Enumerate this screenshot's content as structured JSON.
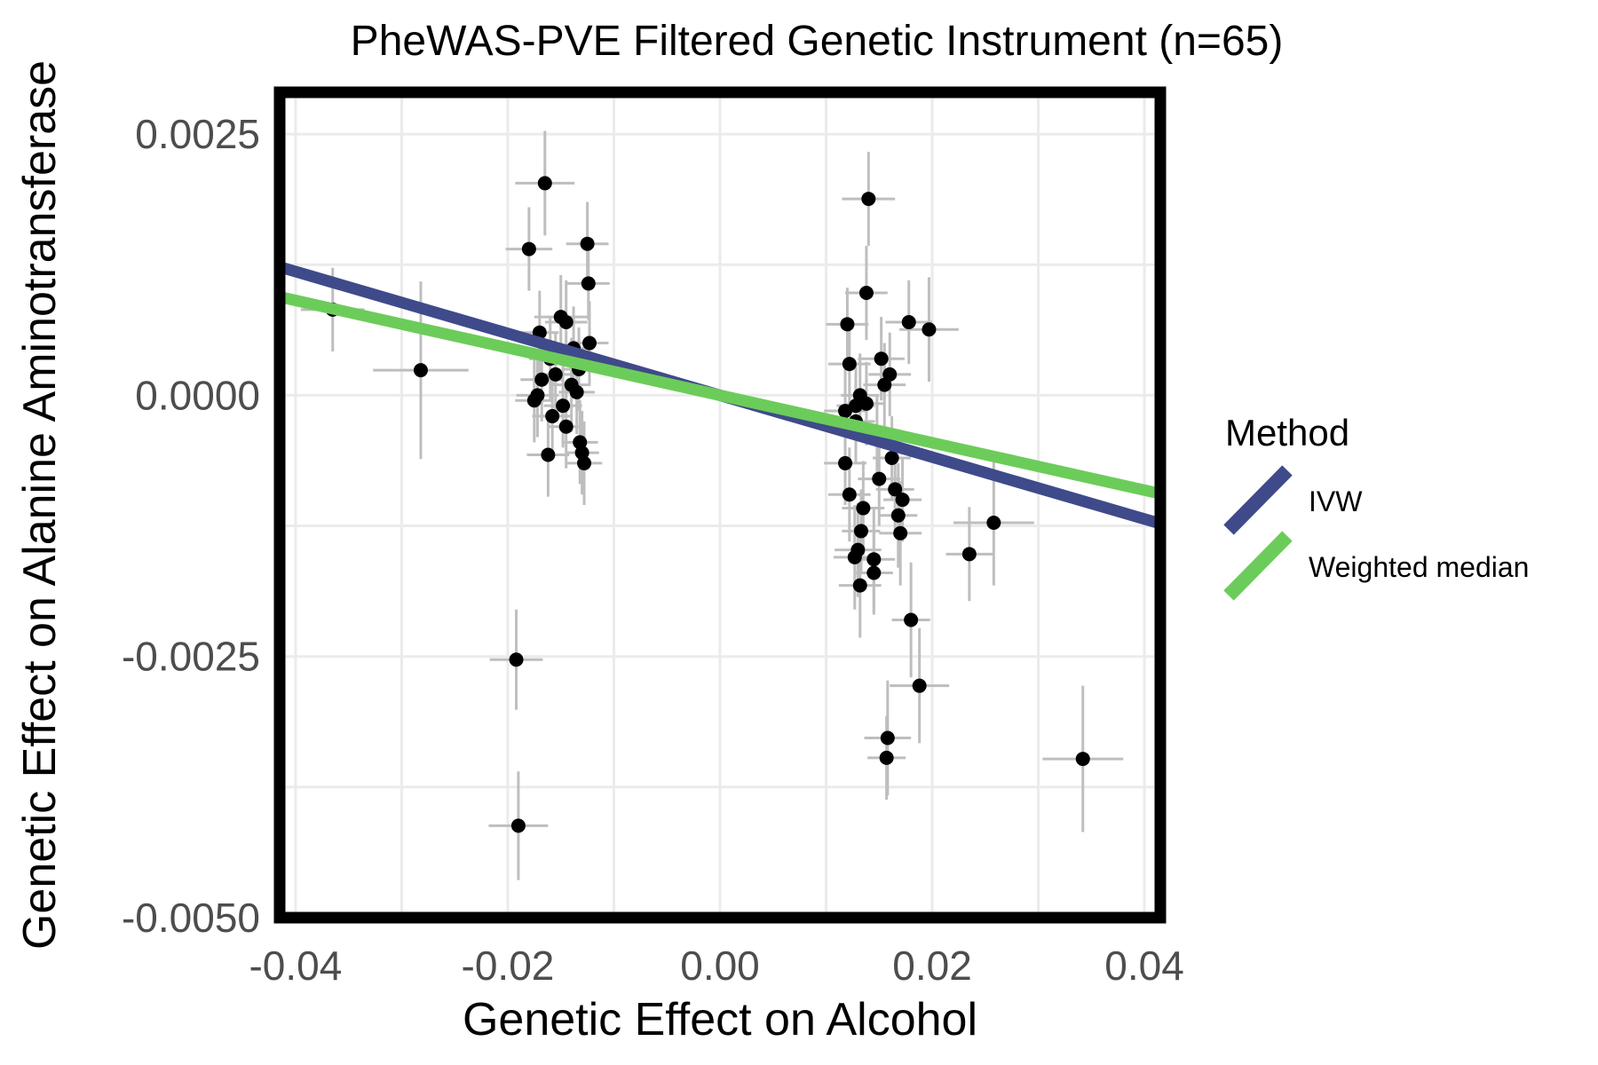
{
  "chart_data": {
    "type": "scatter",
    "title": "PheWAS-PVE Filtered Genetic Instrument (n=65)",
    "xlabel": "Genetic Effect on Alcohol",
    "ylabel": "Genetic Effect on Alanine Aminotransferase",
    "xlim": [
      -0.0415,
      0.0415
    ],
    "ylim": [
      -0.005,
      0.0029
    ],
    "xticks": [
      -0.04,
      -0.02,
      0.0,
      0.02,
      0.04
    ],
    "xtick_labels": [
      "-0.04",
      "-0.02",
      "0.00",
      "0.02",
      "0.04"
    ],
    "yticks": [
      0.0025,
      0.0,
      -0.0025,
      -0.005
    ],
    "ytick_labels": [
      "0.0025",
      "0.0000",
      "-0.0025",
      "-0.0050"
    ],
    "grid": true,
    "legend": {
      "title": "Method",
      "position": "right",
      "entries": [
        {
          "label": "IVW",
          "color": "#3f4a8a"
        },
        {
          "label": "Weighted median",
          "color": "#6ccc5a"
        }
      ]
    },
    "lines": [
      {
        "name": "IVW",
        "slope": -0.0296,
        "intercept": 0,
        "color": "#3f4a8a"
      },
      {
        "name": "Weighted median",
        "slope": -0.0227,
        "intercept": 0,
        "color": "#6ccc5a"
      }
    ],
    "point_color": "#000000",
    "errorbar_color": "#bebebe",
    "points": [
      {
        "x": -0.0365,
        "y": 0.00082,
        "ex": 0.003,
        "ey": 0.0004
      },
      {
        "x": -0.0282,
        "y": 0.00024,
        "ex": 0.0045,
        "ey": 0.00085
      },
      {
        "x": -0.0165,
        "y": 0.00203,
        "ex": 0.0028,
        "ey": 0.0005
      },
      {
        "x": -0.018,
        "y": 0.0014,
        "ex": 0.0022,
        "ey": 0.0004
      },
      {
        "x": -0.0125,
        "y": 0.00145,
        "ex": 0.002,
        "ey": 0.0004
      },
      {
        "x": -0.0124,
        "y": 0.00107,
        "ex": 0.002,
        "ey": 0.00035
      },
      {
        "x": -0.015,
        "y": 0.00075,
        "ex": 0.0025,
        "ey": 0.0004
      },
      {
        "x": -0.0145,
        "y": 0.0007,
        "ex": 0.002,
        "ey": 0.0004
      },
      {
        "x": -0.0123,
        "y": 0.0005,
        "ex": 0.0018,
        "ey": 0.0004
      },
      {
        "x": -0.016,
        "y": 0.00035,
        "ex": 0.002,
        "ey": 0.0004
      },
      {
        "x": -0.0168,
        "y": 0.00015,
        "ex": 0.002,
        "ey": 0.0004
      },
      {
        "x": -0.0172,
        "y": 0.0,
        "ex": 0.002,
        "ey": 0.0004
      },
      {
        "x": -0.0175,
        "y": -5e-05,
        "ex": 0.0018,
        "ey": 0.0004
      },
      {
        "x": -0.014,
        "y": 0.0001,
        "ex": 0.0018,
        "ey": 0.00045
      },
      {
        "x": -0.0135,
        "y": 3e-05,
        "ex": 0.0017,
        "ey": 0.0004
      },
      {
        "x": -0.0158,
        "y": -0.0002,
        "ex": 0.0019,
        "ey": 0.0004
      },
      {
        "x": -0.0145,
        "y": -0.0003,
        "ex": 0.0018,
        "ey": 0.0004
      },
      {
        "x": -0.0132,
        "y": -0.00045,
        "ex": 0.0017,
        "ey": 0.0004
      },
      {
        "x": -0.0162,
        "y": -0.00057,
        "ex": 0.002,
        "ey": 0.0004
      },
      {
        "x": -0.0128,
        "y": -0.00065,
        "ex": 0.0017,
        "ey": 0.0004
      },
      {
        "x": -0.013,
        "y": -0.00055,
        "ex": 0.0016,
        "ey": 0.0004
      },
      {
        "x": -0.0155,
        "y": 0.0002,
        "ex": 0.0018,
        "ey": 0.0004
      },
      {
        "x": -0.0138,
        "y": 0.00045,
        "ex": 0.0018,
        "ey": 0.0004
      },
      {
        "x": -0.0148,
        "y": -0.0001,
        "ex": 0.0018,
        "ey": 0.0004
      },
      {
        "x": -0.0192,
        "y": -0.00253,
        "ex": 0.0025,
        "ey": 0.00048
      },
      {
        "x": -0.019,
        "y": -0.00412,
        "ex": 0.0028,
        "ey": 0.00052
      },
      {
        "x": 0.014,
        "y": 0.00188,
        "ex": 0.0025,
        "ey": 0.00045
      },
      {
        "x": 0.0138,
        "y": 0.00098,
        "ex": 0.002,
        "ey": 0.00045
      },
      {
        "x": 0.012,
        "y": 0.00068,
        "ex": 0.002,
        "ey": 0.00035
      },
      {
        "x": 0.0178,
        "y": 0.0007,
        "ex": 0.0022,
        "ey": 0.0004
      },
      {
        "x": 0.0197,
        "y": 0.00063,
        "ex": 0.0028,
        "ey": 0.0005
      },
      {
        "x": 0.0122,
        "y": 0.0003,
        "ex": 0.002,
        "ey": 0.0004
      },
      {
        "x": 0.0152,
        "y": 0.00035,
        "ex": 0.0022,
        "ey": 0.0004
      },
      {
        "x": 0.016,
        "y": 0.0002,
        "ex": 0.002,
        "ey": 0.0004
      },
      {
        "x": 0.0132,
        "y": 0.0,
        "ex": 0.0018,
        "ey": 0.0004
      },
      {
        "x": 0.0138,
        "y": -8e-05,
        "ex": 0.0018,
        "ey": 0.0004
      },
      {
        "x": 0.0118,
        "y": -0.00015,
        "ex": 0.002,
        "ey": 0.0004
      },
      {
        "x": 0.0128,
        "y": -0.00025,
        "ex": 0.0018,
        "ey": 0.0004
      },
      {
        "x": 0.0118,
        "y": -0.00065,
        "ex": 0.002,
        "ey": 0.0004
      },
      {
        "x": 0.015,
        "y": -0.0008,
        "ex": 0.002,
        "ey": 0.00045
      },
      {
        "x": 0.0165,
        "y": -0.0009,
        "ex": 0.0018,
        "ey": 0.00045
      },
      {
        "x": 0.0122,
        "y": -0.00095,
        "ex": 0.002,
        "ey": 0.00045
      },
      {
        "x": 0.0135,
        "y": -0.00108,
        "ex": 0.002,
        "ey": 0.00045
      },
      {
        "x": 0.0168,
        "y": -0.00115,
        "ex": 0.0018,
        "ey": 0.0005
      },
      {
        "x": 0.017,
        "y": -0.00132,
        "ex": 0.002,
        "ey": 0.0005
      },
      {
        "x": 0.013,
        "y": -0.00148,
        "ex": 0.0022,
        "ey": 0.00045
      },
      {
        "x": 0.0127,
        "y": -0.00155,
        "ex": 0.002,
        "ey": 0.0005
      },
      {
        "x": 0.0145,
        "y": -0.00157,
        "ex": 0.002,
        "ey": 0.0005
      },
      {
        "x": 0.0132,
        "y": -0.00182,
        "ex": 0.002,
        "ey": 0.0005
      },
      {
        "x": 0.0235,
        "y": -0.00152,
        "ex": 0.0022,
        "ey": 0.00045
      },
      {
        "x": 0.0258,
        "y": -0.00122,
        "ex": 0.0038,
        "ey": 0.0006
      },
      {
        "x": 0.018,
        "y": -0.00215,
        "ex": 0.0018,
        "ey": 0.00055
      },
      {
        "x": 0.0188,
        "y": -0.00278,
        "ex": 0.0028,
        "ey": 0.00055
      },
      {
        "x": 0.0158,
        "y": -0.00328,
        "ex": 0.0022,
        "ey": 0.00055
      },
      {
        "x": 0.0157,
        "y": -0.00347,
        "ex": 0.0018,
        "ey": 0.0004
      },
      {
        "x": 0.0342,
        "y": -0.00348,
        "ex": 0.0038,
        "ey": 0.0007
      },
      {
        "x": 0.0162,
        "y": -0.0006,
        "ex": 0.0018,
        "ey": 0.0004
      },
      {
        "x": 0.0172,
        "y": -0.001,
        "ex": 0.0018,
        "ey": 0.0004
      },
      {
        "x": 0.0148,
        "y": -0.0004,
        "ex": 0.0018,
        "ey": 0.0004
      },
      {
        "x": 0.0128,
        "y": -0.0001,
        "ex": 0.0018,
        "ey": 0.0004
      },
      {
        "x": 0.0155,
        "y": 0.0001,
        "ex": 0.002,
        "ey": 0.0004
      },
      {
        "x": -0.017,
        "y": 0.0006,
        "ex": 0.0018,
        "ey": 0.0004
      },
      {
        "x": -0.0133,
        "y": 0.00025,
        "ex": 0.0016,
        "ey": 0.0004
      },
      {
        "x": 0.0133,
        "y": -0.0013,
        "ex": 0.0018,
        "ey": 0.0004
      },
      {
        "x": 0.0145,
        "y": -0.0017,
        "ex": 0.0018,
        "ey": 0.0004
      }
    ]
  }
}
